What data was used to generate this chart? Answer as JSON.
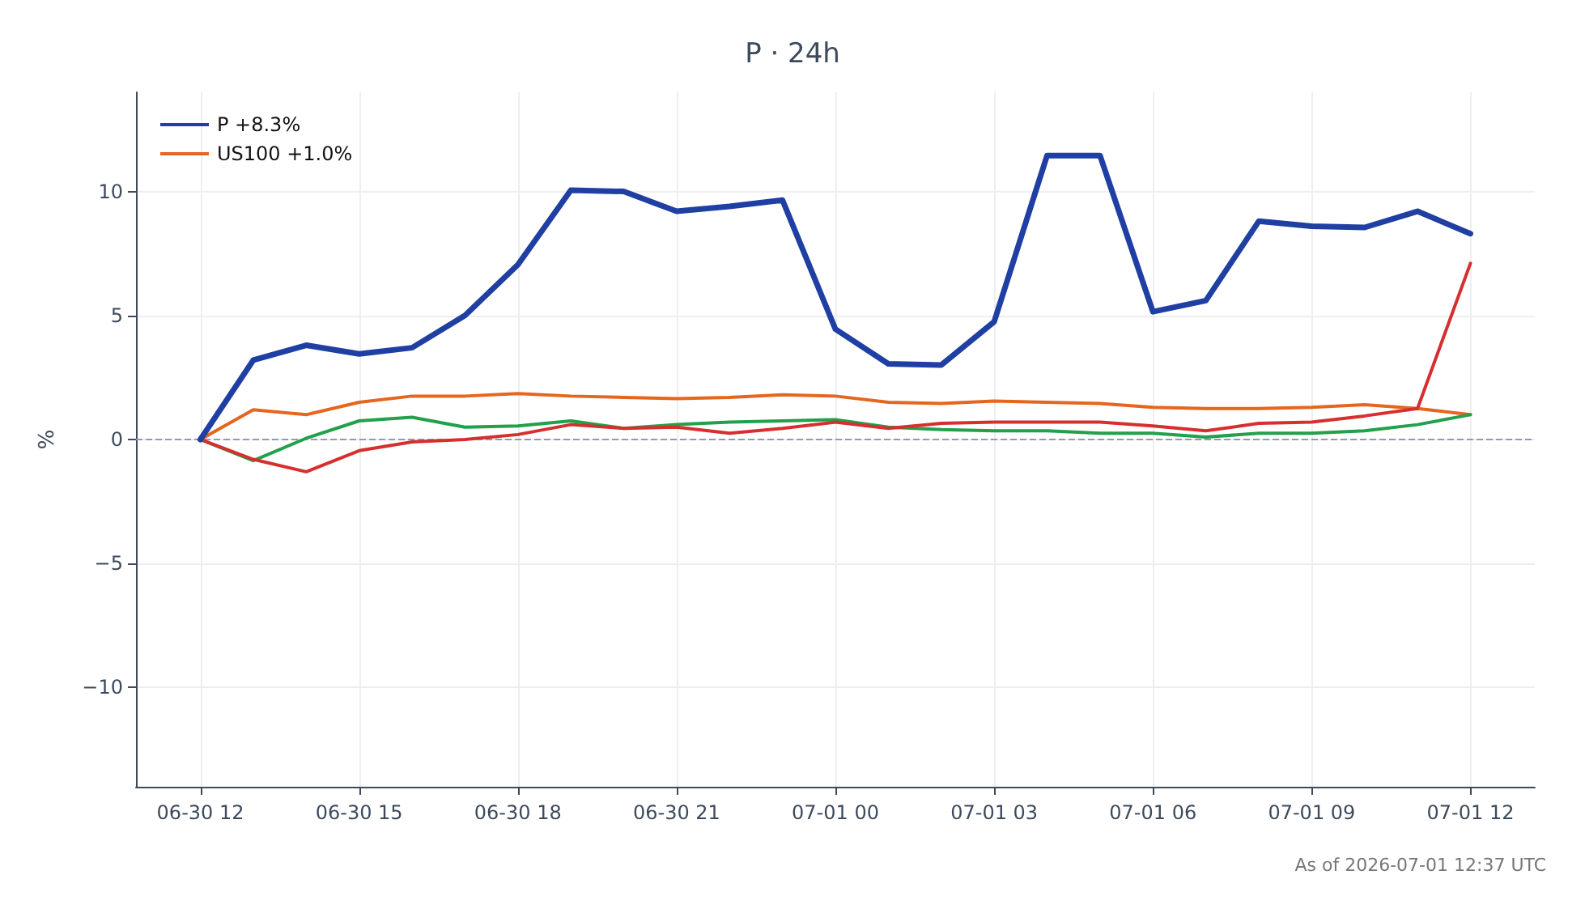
{
  "chart_data": {
    "type": "line",
    "title": "P · 24h",
    "ylabel": "%",
    "x": [
      "2026-06-30T12:00",
      "2026-06-30T13:00",
      "2026-06-30T14:00",
      "2026-06-30T15:00",
      "2026-06-30T16:00",
      "2026-06-30T17:00",
      "2026-06-30T18:00",
      "2026-06-30T19:00",
      "2026-06-30T20:00",
      "2026-06-30T21:00",
      "2026-06-30T22:00",
      "2026-06-30T23:00",
      "2026-07-01T00:00",
      "2026-07-01T01:00",
      "2026-07-01T02:00",
      "2026-07-01T03:00",
      "2026-07-01T04:00",
      "2026-07-01T05:00",
      "2026-07-01T06:00",
      "2026-07-01T07:00",
      "2026-07-01T08:00",
      "2026-07-01T09:00",
      "2026-07-01T10:00",
      "2026-07-01T11:00",
      "2026-07-01T12:00"
    ],
    "series": [
      {
        "name": "P +8.3%",
        "color": "#1f3fa3",
        "values": [
          0,
          3.2,
          3.8,
          3.45,
          3.7,
          5.0,
          7.05,
          10.05,
          10.0,
          9.2,
          9.4,
          9.65,
          4.45,
          3.05,
          3.0,
          4.75,
          11.45,
          11.45,
          5.15,
          5.6,
          8.8,
          8.6,
          8.55,
          9.2,
          8.3
        ]
      },
      {
        "color": "#d62f2f",
        "values": [
          0,
          -0.8,
          -1.3,
          -0.45,
          -0.1,
          0,
          0.2,
          0.6,
          0.45,
          0.5,
          0.25,
          0.45,
          0.7,
          0.45,
          0.65,
          0.7,
          0.7,
          0.7,
          0.55,
          0.35,
          0.65,
          0.7,
          0.95,
          1.25,
          7.1
        ]
      },
      {
        "color": "#22a04b",
        "values": [
          0,
          -0.85,
          0.05,
          0.75,
          0.9,
          0.5,
          0.55,
          0.75,
          0.45,
          0.6,
          0.7,
          0.75,
          0.8,
          0.5,
          0.4,
          0.35,
          0.35,
          0.25,
          0.25,
          0.1,
          0.25,
          0.25,
          0.35,
          0.6,
          1.0
        ]
      },
      {
        "name": "US100 +1.0%",
        "color": "#e5661e",
        "values": [
          0,
          1.2,
          1.0,
          1.5,
          1.75,
          1.75,
          1.85,
          1.75,
          1.7,
          1.65,
          1.7,
          1.8,
          1.75,
          1.5,
          1.45,
          1.55,
          1.5,
          1.45,
          1.3,
          1.25,
          1.25,
          1.3,
          1.4,
          1.25,
          1.0
        ]
      }
    ],
    "xlim": [
      "2026-06-30T10:47",
      "2026-07-01T13:13"
    ],
    "xticks": [
      {
        "value": "2026-06-30T12:00",
        "label": "06-30 12"
      },
      {
        "value": "2026-06-30T15:00",
        "label": "06-30 15"
      },
      {
        "value": "2026-06-30T18:00",
        "label": "06-30 18"
      },
      {
        "value": "2026-06-30T21:00",
        "label": "06-30 21"
      },
      {
        "value": "2026-07-01T00:00",
        "label": "07-01 00"
      },
      {
        "value": "2026-07-01T03:00",
        "label": "07-01 03"
      },
      {
        "value": "2026-07-01T06:00",
        "label": "07-01 06"
      },
      {
        "value": "2026-07-01T09:00",
        "label": "07-01 09"
      },
      {
        "value": "2026-07-01T12:00",
        "label": "07-01 12"
      }
    ],
    "ylim": [
      -14,
      14
    ],
    "yticks": [
      {
        "value": -10,
        "label": "−10"
      },
      {
        "value": -5,
        "label": "−5"
      },
      0,
      5,
      10
    ],
    "ref_lines": [
      {
        "axis": "y",
        "value": 0,
        "color": "#8f9bb3",
        "line_style": "dashed"
      }
    ],
    "annotations": [
      "As of 2026-07-01 12:37 UTC"
    ],
    "grid": true,
    "legend": "top left",
    "marker": "none",
    "line_style": "solid"
  }
}
